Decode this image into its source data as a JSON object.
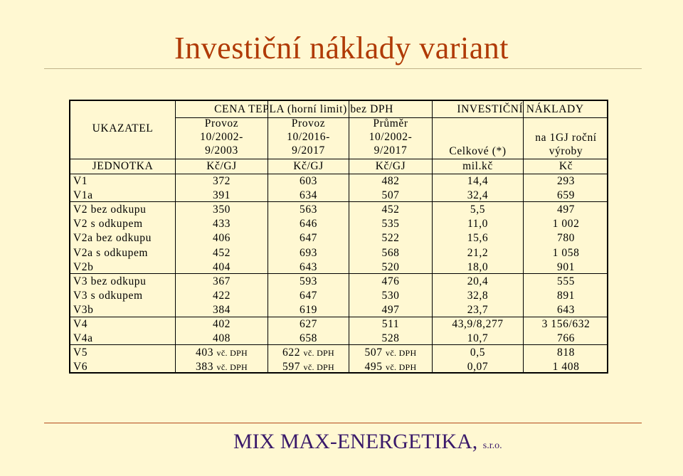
{
  "title": "Investiční náklady variant",
  "footer": {
    "company": "MIX MAX-ENERGETIKA,",
    "suffix": "s.r.o."
  },
  "table": {
    "header": {
      "ukazatel": "UKAZATEL",
      "cena_group": "CENA TEPLA (horní limit) bez DPH",
      "inv_group": "INVESTIČNÍ NÁKLADY",
      "col1": [
        "Provoz",
        "10/2002-",
        "9/2003"
      ],
      "col2": [
        "Provoz",
        "10/2016-",
        "9/2017"
      ],
      "col3": [
        "Průměr",
        "10/2002-",
        "9/2017"
      ],
      "col4": "Celkové (*)",
      "col5": [
        "na 1GJ roční",
        "výroby"
      ]
    },
    "units": {
      "label": "JEDNOTKA",
      "u1": "Kč/GJ",
      "u2": "Kč/GJ",
      "u3": "Kč/GJ",
      "u4": "mil.kč",
      "u5": "Kč"
    },
    "rows": [
      {
        "name": "V1",
        "p1": "372",
        "p2": "603",
        "avg": "482",
        "total": "14,4",
        "per_gj": "293"
      },
      {
        "name": "V1a",
        "p1": "391",
        "p2": "634",
        "avg": "507",
        "total": "32,4",
        "per_gj": "659"
      },
      {
        "name": "V2 bez odkupu",
        "p1": "350",
        "p2": "563",
        "avg": "452",
        "total": "5,5",
        "per_gj": "497"
      },
      {
        "name": "V2 s odkupem",
        "p1": "433",
        "p2": "646",
        "avg": "535",
        "total": "11,0",
        "per_gj": "1 002"
      },
      {
        "name": "V2a bez odkupu",
        "p1": "406",
        "p2": "647",
        "avg": "522",
        "total": "15,6",
        "per_gj": "780"
      },
      {
        "name": "V2a s odkupem",
        "p1": "452",
        "p2": "693",
        "avg": "568",
        "total": "21,2",
        "per_gj": "1 058"
      },
      {
        "name": "V2b",
        "p1": "404",
        "p2": "643",
        "avg": "520",
        "total": "18,0",
        "per_gj": "901"
      },
      {
        "name": "V3 bez odkupu",
        "p1": "367",
        "p2": "593",
        "avg": "476",
        "total": "20,4",
        "per_gj": "555"
      },
      {
        "name": "V3 s odkupem",
        "p1": "422",
        "p2": "647",
        "avg": "530",
        "total": "32,8",
        "per_gj": "891"
      },
      {
        "name": "V3b",
        "p1": "384",
        "p2": "619",
        "avg": "497",
        "total": "23,7",
        "per_gj": "643"
      },
      {
        "name": "V4",
        "p1": "402",
        "p2": "627",
        "avg": "511",
        "total": "43,9/8,277",
        "per_gj": "3 156/632"
      },
      {
        "name": "V4a",
        "p1": "408",
        "p2": "658",
        "avg": "528",
        "total": "10,7",
        "per_gj": "766"
      },
      {
        "name": "V5",
        "p1": "403",
        "p2": "622",
        "avg": "507",
        "total": "0,5",
        "per_gj": "818",
        "suffix": "vč. DPH"
      },
      {
        "name": "V6",
        "p1": "383",
        "p2": "597",
        "avg": "495",
        "total": "0,07",
        "per_gj": "1 408",
        "suffix": "vč. DPH"
      }
    ]
  }
}
